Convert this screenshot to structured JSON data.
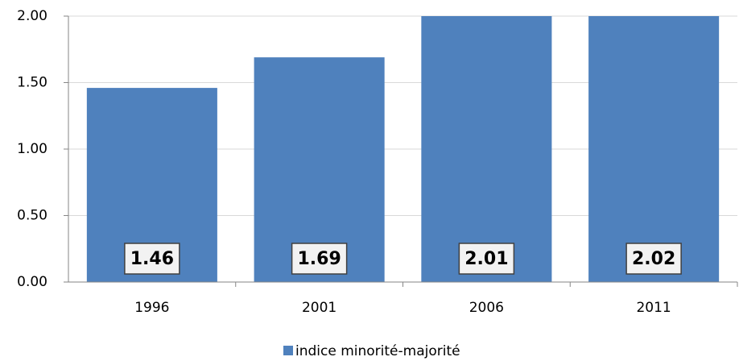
{
  "chart_data": {
    "type": "bar",
    "categories": [
      "1996",
      "2001",
      "2006",
      "2011"
    ],
    "series": [
      {
        "name": "indice minorité-majorité",
        "color": "#4f81bd",
        "values": [
          1.46,
          1.69,
          2.01,
          2.02
        ]
      }
    ],
    "ylim": [
      0,
      2
    ],
    "yticks": [
      {
        "value": 0,
        "label": "0.00"
      },
      {
        "value": 0.5,
        "label": "0.50"
      },
      {
        "value": 1,
        "label": "1.00"
      },
      {
        "value": 1.5,
        "label": "1.50"
      },
      {
        "value": 2,
        "label": "2.00"
      }
    ],
    "grid": true,
    "legend": "bottom"
  }
}
